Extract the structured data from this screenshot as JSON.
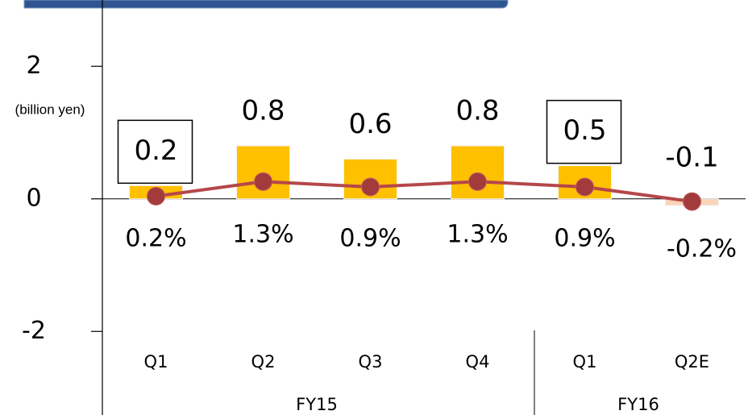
{
  "chart_data": {
    "type": "bar",
    "y_label": "(billion yen)",
    "categories": [
      "Q1",
      "Q2",
      "Q3",
      "Q4",
      "Q1",
      "Q2E"
    ],
    "groups": [
      {
        "name": "FY15",
        "count": 4
      },
      {
        "name": "FY16",
        "count": 2
      }
    ],
    "series": [
      {
        "name": "bar",
        "type": "bar",
        "color": "#ffc000",
        "negative_color": "#fbd5b8",
        "values": [
          0.2,
          0.8,
          0.6,
          0.8,
          0.5,
          -0.1
        ],
        "boxed_labels": [
          0,
          4
        ]
      },
      {
        "name": "line",
        "type": "line",
        "axis": "y2",
        "color": "#b5474a",
        "marker_color": "#a33a3c",
        "values": [
          0.2,
          1.3,
          0.9,
          1.3,
          0.9,
          -0.2
        ],
        "value_labels": [
          "0.2%",
          "1.3%",
          "0.9%",
          "1.3%",
          "0.9%",
          "-0.2%"
        ]
      }
    ],
    "ylim": [
      -3.2,
      3
    ],
    "yticks": [
      -2,
      0,
      2
    ],
    "y2lim": [
      -16,
      15
    ]
  }
}
